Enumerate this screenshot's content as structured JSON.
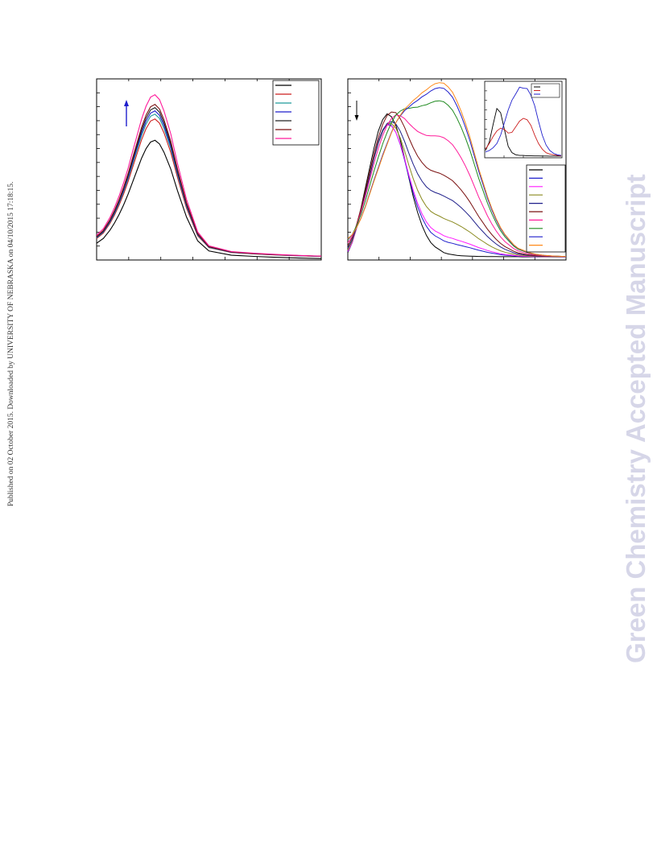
{
  "publication_note": "Published on 02 October 2015. Downloaded by UNIVERSITY OF NEBRASKA on 04/10/2015 17:18:15.",
  "watermark": {
    "text": "Green Chemistry Accepted Manuscript",
    "color": "#d6d6e8"
  },
  "chart_data": [
    {
      "type": "line",
      "legend": "top-right",
      "arrow": {
        "direction": "up",
        "color": "#1f1fcc"
      },
      "x": [
        0,
        3,
        6,
        8,
        10,
        12,
        14,
        16,
        18,
        20,
        22,
        24,
        26,
        28,
        30,
        33,
        36,
        40,
        45,
        50,
        60,
        70,
        80,
        90,
        100
      ],
      "base": [
        0.14,
        0.18,
        0.25,
        0.31,
        0.38,
        0.46,
        0.55,
        0.65,
        0.75,
        0.85,
        0.93,
        0.985,
        1.0,
        0.97,
        0.9,
        0.76,
        0.58,
        0.36,
        0.16,
        0.075,
        0.04,
        0.03,
        0.022,
        0.016,
        0.012
      ],
      "ylim": [
        0,
        1.08
      ],
      "series": [
        {
          "color": "#000000",
          "peak": 0.74,
          "offset": 0.0
        },
        {
          "color": "#cc1f1f",
          "peak": 0.86,
          "offset": 0.0
        },
        {
          "color": "#1f9a9a",
          "peak": 0.89,
          "offset": 0.0
        },
        {
          "color": "#1f1fcc",
          "peak": 0.91,
          "offset": 0.0
        },
        {
          "color": "#222222",
          "peak": 0.93,
          "offset": 0.0
        },
        {
          "color": "#7a1010",
          "peak": 0.95,
          "offset": 0.0
        },
        {
          "color": "#ff1a9a",
          "peak": 0.98,
          "offset": 0.03
        }
      ]
    },
    {
      "type": "line",
      "legend": "right",
      "arrow": {
        "direction": "down",
        "color": "#000000"
      },
      "x": [
        0,
        2,
        4,
        6,
        8,
        10,
        12,
        14,
        16,
        18,
        20,
        22,
        24,
        26,
        28,
        30,
        32,
        34,
        36,
        38,
        40,
        42,
        44,
        46,
        48,
        50,
        52,
        54,
        56,
        58,
        60,
        62,
        64,
        66,
        68,
        70,
        72,
        74,
        76,
        78,
        80,
        82,
        84,
        86,
        88,
        90,
        92,
        94,
        96,
        98,
        100
      ],
      "bandA": [
        0.03,
        0.1,
        0.21,
        0.34,
        0.48,
        0.62,
        0.76,
        0.88,
        0.96,
        1.0,
        0.98,
        0.92,
        0.82,
        0.69,
        0.55,
        0.42,
        0.31,
        0.22,
        0.15,
        0.1,
        0.07,
        0.05,
        0.03,
        0.02,
        0.015,
        0.01,
        0.008,
        0.006,
        0.005,
        0.004,
        0.003,
        0.003,
        0.002,
        0.002,
        0.002,
        0.001,
        0.001,
        0.001,
        0.001,
        0.001,
        0,
        0,
        0,
        0,
        0,
        0,
        0,
        0,
        0,
        0,
        0
      ],
      "bandB": [
        0.1,
        0.11,
        0.13,
        0.16,
        0.2,
        0.25,
        0.3,
        0.35,
        0.41,
        0.47,
        0.54,
        0.61,
        0.67,
        0.73,
        0.78,
        0.83,
        0.87,
        0.91,
        0.94,
        0.97,
        0.99,
        1.0,
        1.0,
        0.98,
        0.95,
        0.9,
        0.84,
        0.77,
        0.69,
        0.6,
        0.51,
        0.43,
        0.35,
        0.28,
        0.22,
        0.17,
        0.13,
        0.1,
        0.07,
        0.05,
        0.04,
        0.03,
        0.022,
        0.016,
        0.012,
        0.009,
        0.007,
        0.005,
        0.004,
        0.003,
        0.002
      ],
      "ylim": [
        0,
        1.02
      ],
      "series": [
        {
          "color": "#000000",
          "a": 0.82,
          "b": 0.0
        },
        {
          "color": "#1f1fcc",
          "a": 0.73,
          "b": 0.07
        },
        {
          "color": "#ff1aff",
          "a": 0.71,
          "b": 0.1
        },
        {
          "color": "#8a8a1f",
          "a": 0.67,
          "b": 0.2
        },
        {
          "color": "#1f1f8a",
          "a": 0.61,
          "b": 0.33
        },
        {
          "color": "#7a1010",
          "a": 0.6,
          "b": 0.45
        },
        {
          "color": "#ff1a9a",
          "a": 0.44,
          "b": 0.67
        },
        {
          "color": "#1f8a1f",
          "a": 0.3,
          "b": 0.88
        },
        {
          "color": "#1f1fcc",
          "a": 0.2,
          "b": 0.96
        },
        {
          "color": "#ff8a1a",
          "a": 0.18,
          "b": 0.99
        }
      ],
      "inset": {
        "x": [
          0,
          5,
          10,
          15,
          20,
          25,
          30,
          35,
          40,
          45,
          50,
          55,
          60,
          65,
          70,
          75,
          80,
          85,
          90,
          95,
          100
        ],
        "series": [
          {
            "color": "#000000",
            "values": [
              0.08,
              0.2,
              0.45,
              0.68,
              0.62,
              0.38,
              0.14,
              0.05,
              0.02,
              0.01,
              0.01,
              0.005,
              0.005,
              0.003,
              0.003,
              0.002,
              0.002,
              0.001,
              0.001,
              0.001,
              0.001
            ]
          },
          {
            "color": "#cc1f1f",
            "values": [
              0.1,
              0.18,
              0.28,
              0.36,
              0.4,
              0.38,
              0.33,
              0.34,
              0.42,
              0.5,
              0.54,
              0.52,
              0.44,
              0.3,
              0.18,
              0.1,
              0.05,
              0.03,
              0.02,
              0.01,
              0.005
            ]
          },
          {
            "color": "#1f1fcc",
            "values": [
              0.06,
              0.08,
              0.12,
              0.18,
              0.3,
              0.48,
              0.66,
              0.8,
              0.9,
              0.97,
              0.98,
              0.95,
              0.88,
              0.72,
              0.5,
              0.3,
              0.16,
              0.08,
              0.04,
              0.02,
              0.01
            ]
          }
        ]
      }
    }
  ]
}
